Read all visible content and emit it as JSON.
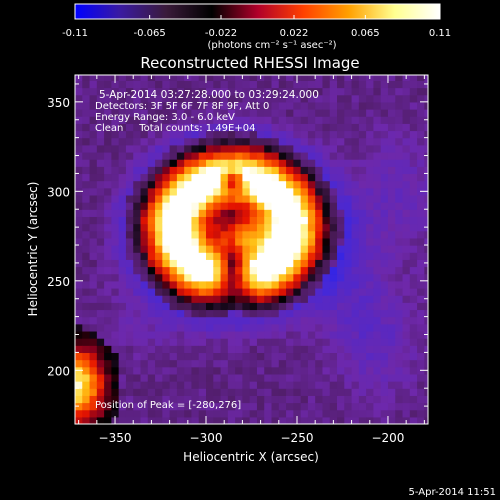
{
  "colorbar": {
    "tick_labels": [
      "-0.11",
      "-0.065",
      "-0.022",
      "0.022",
      "0.065",
      "0.11"
    ],
    "tick_values": [
      -0.11,
      -0.065,
      -0.022,
      0.022,
      0.065,
      0.11
    ],
    "range": [
      -0.11,
      0.11
    ],
    "units": "(photons cm⁻² s⁻¹ asec⁻²)",
    "gradient_colors": [
      "#0000ff",
      "#3a1aa0",
      "#3a1a3a",
      "#000000",
      "#b0002a",
      "#ff4000",
      "#ffa000",
      "#ffff90",
      "#ffffff"
    ]
  },
  "chart_data": {
    "type": "heatmap",
    "title": "Reconstructed RHESSI Image",
    "xlabel": "Heliocentric X (arcsec)",
    "ylabel": "Heliocentric Y (arcsec)",
    "xlim": [
      -372,
      -178
    ],
    "ylim": [
      170,
      365
    ],
    "x_ticks": [
      -350,
      -300,
      -250,
      -200
    ],
    "x_tick_labels": [
      "−350",
      "−300",
      "−250",
      "−200"
    ],
    "y_ticks": [
      200,
      250,
      300,
      350
    ],
    "y_tick_labels": [
      "200",
      "250",
      "300",
      "350"
    ],
    "annotations": [
      "5-Apr-2014 03:27:28.000 to 03:29:24.000",
      "Detectors: 3F 5F 6F 7F 8F 9F, Att 0",
      "Energy Range: 3.0 - 6.0 keV",
      "Clean     Total counts: 1.49E+04"
    ],
    "peak_label": "Position of Peak = [-280,276]",
    "peak": [
      -280,
      276
    ],
    "grid": false,
    "colorscale_range": [
      -0.11,
      0.11
    ],
    "sources": [
      {
        "name": "main source",
        "center": [
          -283,
          286
        ],
        "peak_flux": 0.11,
        "shape": "ring with dark core at [-285, 306], open toward bottom"
      },
      {
        "name": "lower-left corner source",
        "center": [
          -372,
          192
        ],
        "peak_flux": 0.08
      }
    ]
  },
  "footer": {
    "timestamp": "5-Apr-2014 11:51"
  }
}
